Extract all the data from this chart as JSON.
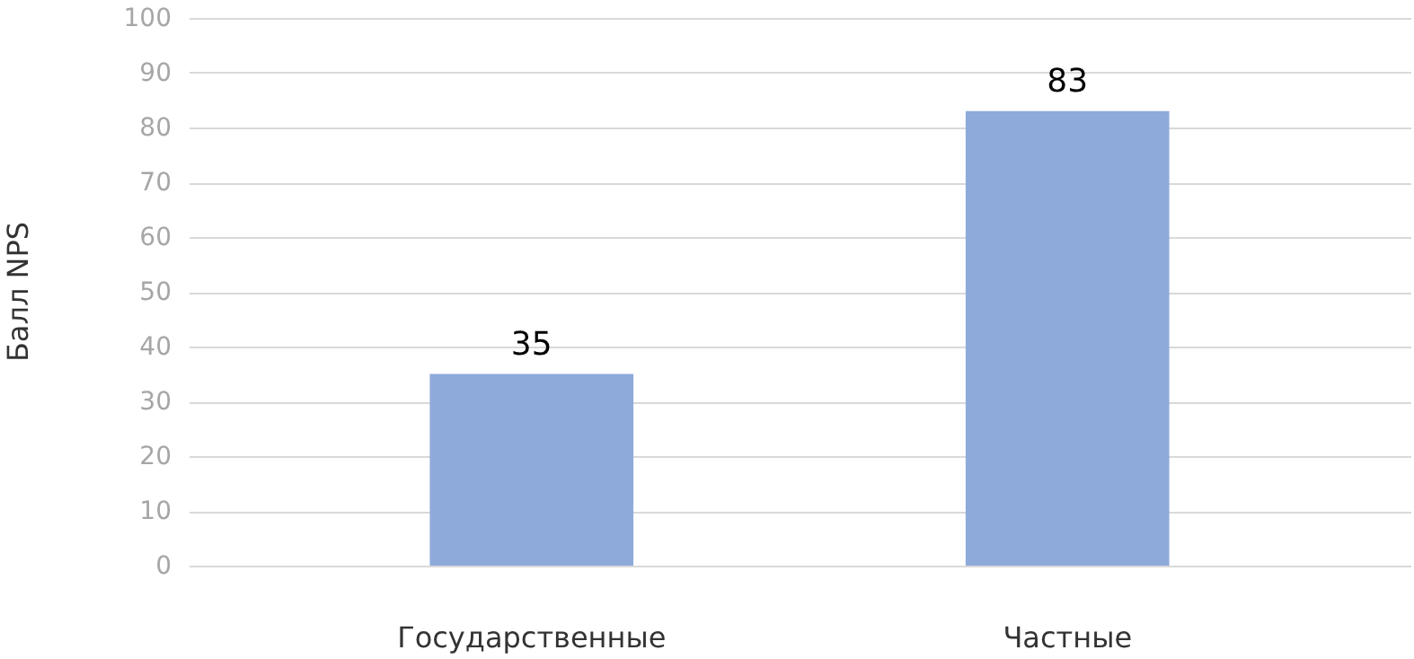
{
  "chart_data": {
    "type": "bar",
    "ylabel": "Балл NPS",
    "categories": [
      "Государственные",
      "Частные"
    ],
    "values": [
      35,
      83
    ],
    "color": "#8eaadb",
    "ylim": [
      0,
      100
    ],
    "yticks": [
      0,
      10,
      20,
      30,
      40,
      50,
      60,
      70,
      80,
      90,
      100
    ],
    "grid": "y",
    "data_labels": true
  }
}
